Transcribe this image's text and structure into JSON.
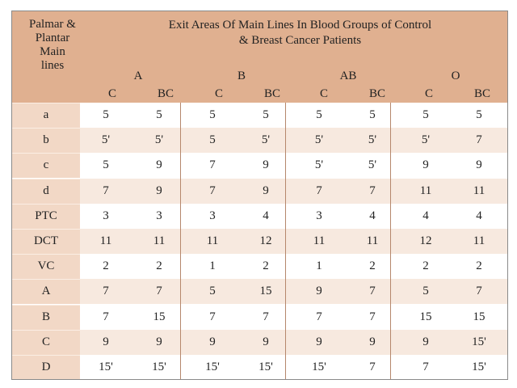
{
  "corner_header": [
    "Palmar &",
    "Plantar",
    "Main",
    "lines"
  ],
  "title_lines": [
    "Exit Areas Of Main Lines In Blood Groups of Control",
    "& Breast Cancer Patients"
  ],
  "groups": [
    "A",
    "B",
    "AB",
    "O"
  ],
  "subheaders": [
    "C",
    "BC",
    "C",
    "BC",
    "C",
    "BC",
    "C",
    "BC"
  ],
  "rows": [
    {
      "label": "a",
      "values": [
        "5",
        "5",
        "5",
        "5",
        "5",
        "5",
        "5",
        "5"
      ]
    },
    {
      "label": "b",
      "values": [
        "5'",
        "5'",
        "5",
        "5'",
        "5'",
        "5'",
        "5'",
        "7"
      ]
    },
    {
      "label": "c",
      "values": [
        "5",
        "9",
        "7",
        "9",
        "5'",
        "5'",
        "9",
        "9"
      ]
    },
    {
      "label": "d",
      "values": [
        "7",
        "9",
        "7",
        "9",
        "7",
        "7",
        "11",
        "11"
      ]
    },
    {
      "label": "PTC",
      "values": [
        "3",
        "3",
        "3",
        "4",
        "3",
        "4",
        "4",
        "4"
      ]
    },
    {
      "label": "DCT",
      "values": [
        "11",
        "11",
        "11",
        "12",
        "11",
        "11",
        "12",
        "11"
      ]
    },
    {
      "label": "VC",
      "values": [
        "2",
        "2",
        "1",
        "2",
        "1",
        "2",
        "2",
        "2"
      ]
    },
    {
      "label": "A",
      "values": [
        "7",
        "7",
        "5",
        "15",
        "9",
        "7",
        "5",
        "7"
      ]
    },
    {
      "label": "B",
      "values": [
        "7",
        "15",
        "7",
        "7",
        "7",
        "7",
        "15",
        "15"
      ]
    },
    {
      "label": "C",
      "values": [
        "9",
        "9",
        "9",
        "9",
        "9",
        "9",
        "9",
        "15'"
      ]
    },
    {
      "label": "D",
      "values": [
        "15'",
        "15'",
        "15'",
        "15'",
        "15'",
        "7",
        "7",
        "15'"
      ]
    }
  ]
}
